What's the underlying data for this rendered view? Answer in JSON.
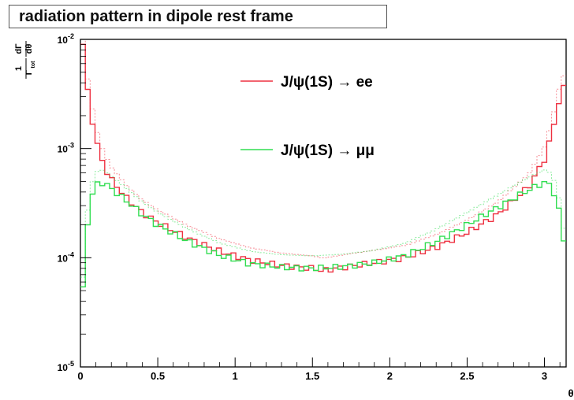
{
  "chart_data": {
    "type": "line",
    "title": "radiation pattern in dipole rest frame",
    "ylabel": {
      "num_left": "1",
      "den_left": "Γ",
      "den_left_sub": "tot",
      "num_right": "dΓ",
      "den_right": "dθ"
    },
    "xlabel": "θ",
    "xlim": [
      0,
      3.14
    ],
    "ylim": [
      1e-05,
      0.01
    ],
    "y_log": true,
    "x_ticks": [
      "0",
      "0.5",
      "1",
      "1.5",
      "2",
      "2.5",
      "3"
    ],
    "y_ticks": [
      {
        "base": "10",
        "exp": "-5"
      },
      {
        "base": "10",
        "exp": "-4"
      },
      {
        "base": "10",
        "exp": "-3"
      },
      {
        "base": "10",
        "exp": "-2"
      }
    ],
    "grid": false,
    "legend_placement": "top-center",
    "series": [
      {
        "name": "J/ψ(1S) → ee",
        "color": "#ee3040",
        "x": [
          0.02,
          0.05,
          0.1,
          0.15,
          0.2,
          0.3,
          0.4,
          0.5,
          0.7,
          0.9,
          1.1,
          1.3,
          1.5,
          1.57,
          1.7,
          1.9,
          2.1,
          2.3,
          2.5,
          2.7,
          2.9,
          3.0,
          3.05,
          3.1,
          3.14
        ],
        "y": [
          0.009,
          0.003,
          0.0012,
          0.0007,
          0.00052,
          0.00035,
          0.00026,
          0.00021,
          0.00015,
          0.000115,
          9.5e-05,
          8.5e-05,
          8e-05,
          7.6e-05,
          8.2e-05,
          9e-05,
          0.0001,
          0.000125,
          0.00017,
          0.00025,
          0.00045,
          0.0008,
          0.0014,
          0.003,
          0.004
        ]
      },
      {
        "name": "J/ψ(1S) → μμ",
        "color": "#30dd50",
        "x": [
          0.0,
          0.03,
          0.06,
          0.1,
          0.15,
          0.2,
          0.3,
          0.4,
          0.5,
          0.7,
          0.9,
          1.1,
          1.3,
          1.5,
          1.7,
          1.9,
          2.1,
          2.3,
          2.5,
          2.7,
          2.9,
          3.0,
          3.05,
          3.1,
          3.14
        ],
        "y": [
          2e-05,
          0.00012,
          0.00032,
          0.00047,
          0.00049,
          0.00043,
          0.00033,
          0.00025,
          0.0002,
          0.00014,
          0.000105,
          8.8e-05,
          8.2e-05,
          8e-05,
          8.3e-05,
          9e-05,
          0.000105,
          0.00014,
          0.0002,
          0.00029,
          0.00042,
          0.00049,
          0.00045,
          0.00025,
          0.0001
        ]
      }
    ]
  }
}
